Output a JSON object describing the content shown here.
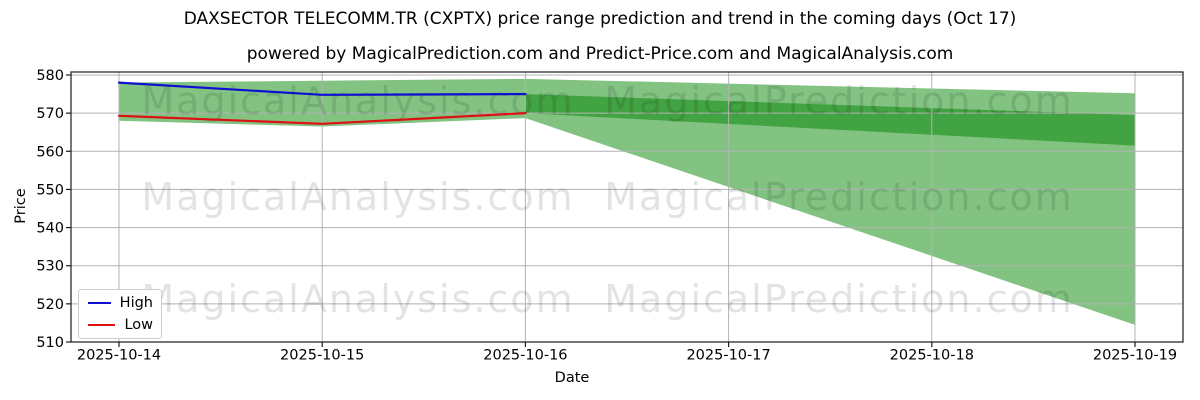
{
  "header": {
    "title": "DAXSECTOR TELECOMM.TR (CXPTX) price range prediction and trend in the coming days (Oct 17)",
    "subtitle": "powered by MagicalPrediction.com and Predict-Price.com and MagicalAnalysis.com"
  },
  "watermarks": {
    "left": "MagicalAnalysis.com",
    "right": "MagicalPrediction.com"
  },
  "legend": {
    "items": [
      {
        "label": "High",
        "color": "#0f0fd0"
      },
      {
        "label": "Low",
        "color": "#dd1111"
      }
    ]
  },
  "colors": {
    "band_light_green": "#82c382",
    "band_dark_green": "#42a342",
    "grid_gray": "#b3b3b3",
    "frame_black": "#1a1a1a",
    "watermark_gray": "rgba(0,0,0,0.11)"
  },
  "chart_data": {
    "type": "line",
    "title": "DAXSECTOR TELECOMM.TR (CXPTX) price range prediction and trend in the coming days (Oct 17)",
    "subtitle": "powered by MagicalPrediction.com and Predict-Price.com and MagicalAnalysis.com",
    "xlabel": "Date",
    "ylabel": "Price",
    "x_labels": [
      "2025-10-14",
      "2025-10-15",
      "2025-10-16",
      "2025-10-17",
      "2025-10-18",
      "2025-10-19"
    ],
    "yticks": [
      510,
      520,
      530,
      540,
      550,
      560,
      570,
      580
    ],
    "ylim": [
      510,
      580.8
    ],
    "grid": true,
    "legend_position": "lower-left",
    "series": [
      {
        "name": "High",
        "color": "#0f0fd0",
        "x": [
          "2025-10-14",
          "2025-10-15",
          "2025-10-16"
        ],
        "values": [
          578,
          574.8,
          575
        ]
      },
      {
        "name": "Low",
        "color": "#dd1111",
        "x": [
          "2025-10-14",
          "2025-10-15",
          "2025-10-16"
        ],
        "values": [
          569.3,
          567.2,
          570
        ]
      }
    ],
    "bands": [
      {
        "name": "historical-range",
        "color": "#82c382",
        "x": [
          "2025-10-14",
          "2025-10-15",
          "2025-10-16"
        ],
        "top": [
          578,
          578.5,
          579
        ],
        "bottom": [
          568,
          566.5,
          568.7
        ]
      },
      {
        "name": "forecast-outer-range",
        "color": "#82c382",
        "x": [
          "2025-10-16",
          "2025-10-19"
        ],
        "top": [
          579,
          575.2
        ],
        "bottom": [
          568.7,
          514.5
        ]
      },
      {
        "name": "forecast-likely-range",
        "color": "#42a342",
        "x": [
          "2025-10-16",
          "2025-10-19"
        ],
        "top": [
          575,
          569.5
        ],
        "bottom": [
          570,
          561.5
        ]
      }
    ]
  }
}
